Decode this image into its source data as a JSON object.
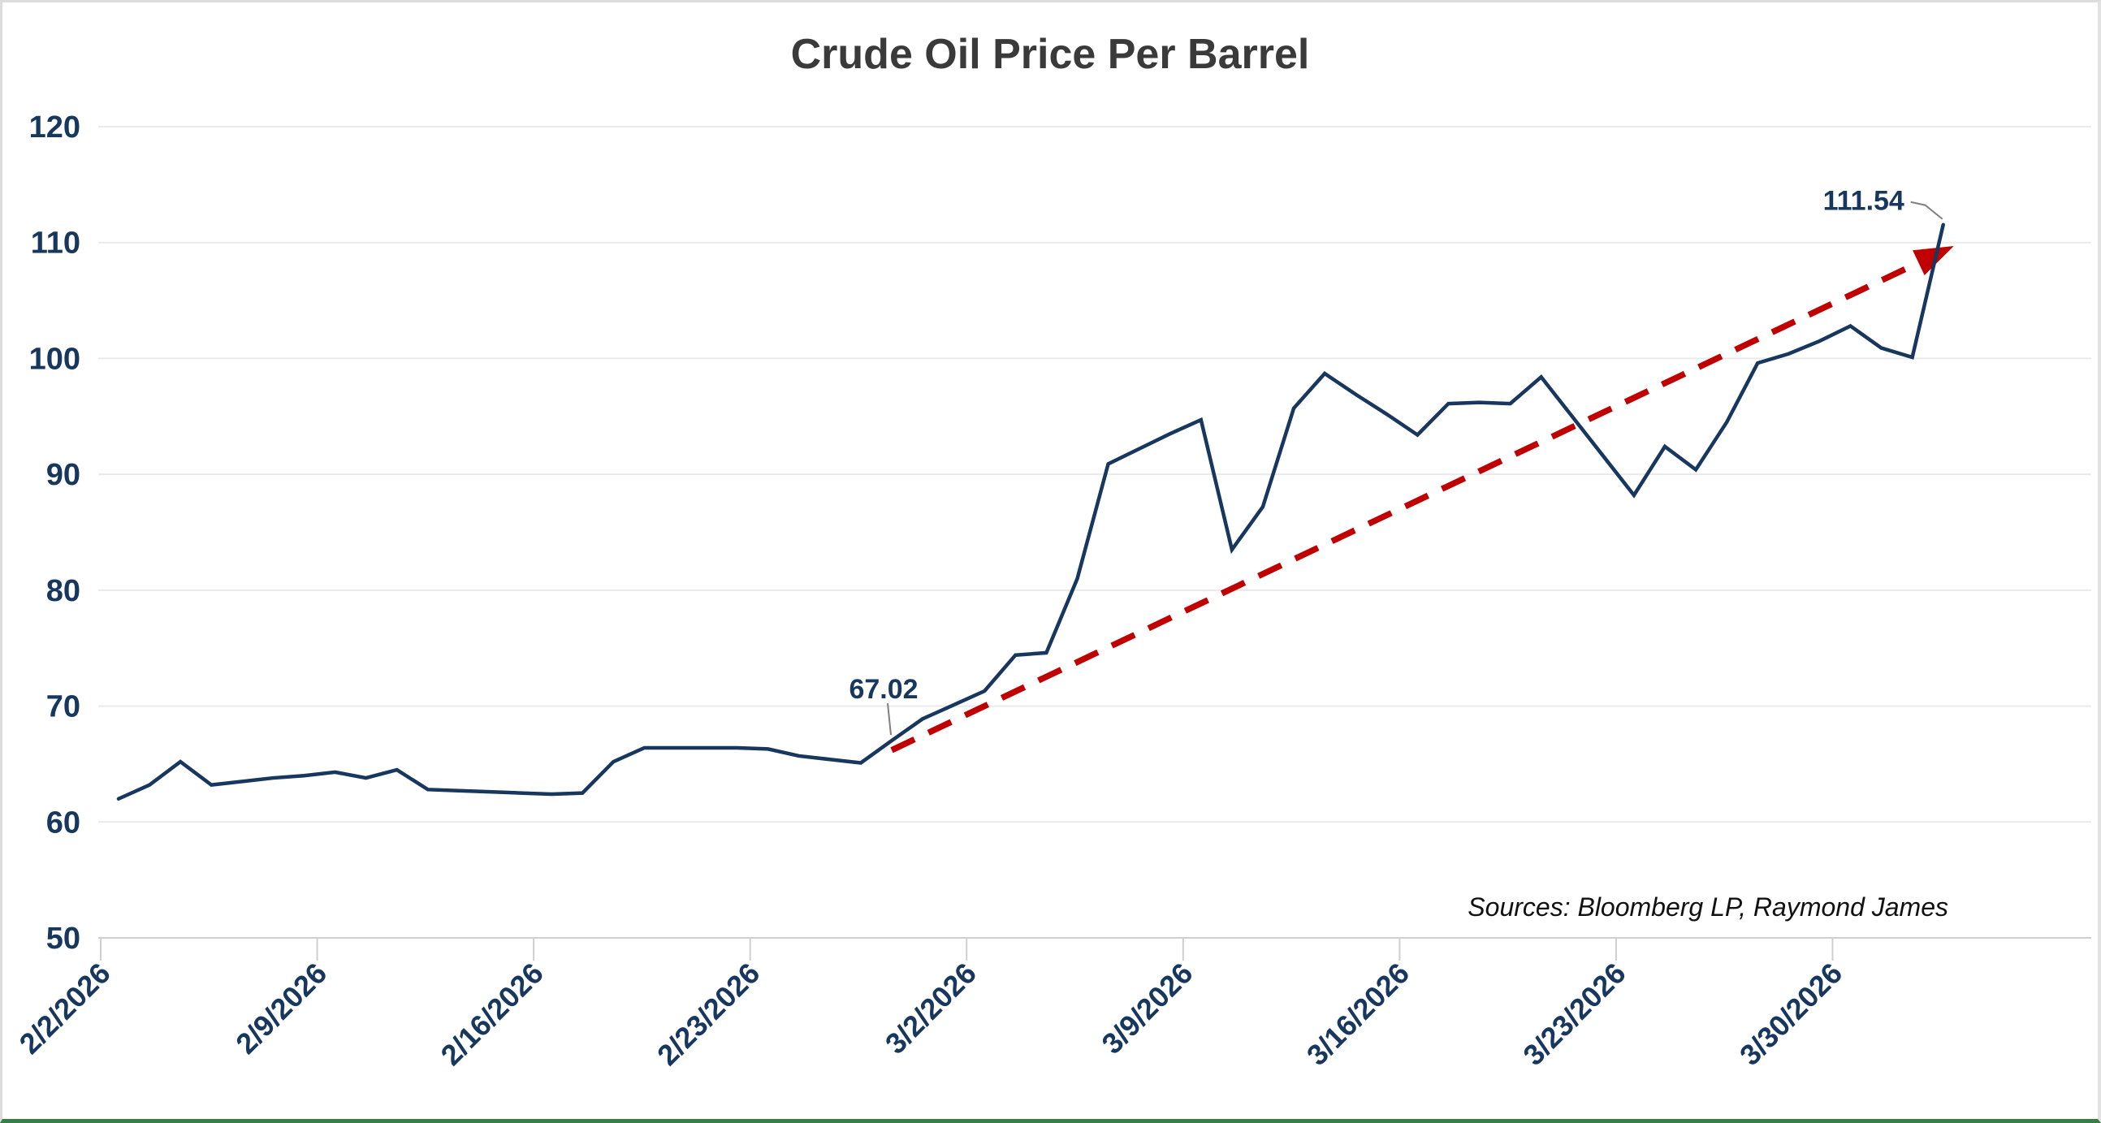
{
  "title": "Crude Oil Price Per Barrel",
  "sources": "Sources: Bloomberg LP, Raymond James",
  "colors": {
    "line": "#17375E",
    "trend": "#C00000",
    "axis_text": "#17375E",
    "title_text": "#3A3A3A",
    "grid": "#EAEAEA",
    "axis_line": "#CFCFCF",
    "leader": "#808080",
    "sources_text": "#111111"
  },
  "chart_data": {
    "type": "line",
    "title": "Crude Oil Price Per Barrel",
    "series_name": "Crude Oil Price Per Barrel",
    "x": [
      "2/2/2026",
      "2/3/2026",
      "2/4/2026",
      "2/5/2026",
      "2/6/2026",
      "2/7/2026",
      "2/8/2026",
      "2/9/2026",
      "2/10/2026",
      "2/11/2026",
      "2/12/2026",
      "2/13/2026",
      "2/14/2026",
      "2/15/2026",
      "2/16/2026",
      "2/17/2026",
      "2/18/2026",
      "2/19/2026",
      "2/20/2026",
      "2/21/2026",
      "2/22/2026",
      "2/23/2026",
      "2/24/2026",
      "2/25/2026",
      "2/26/2026",
      "2/27/2026",
      "2/28/2026",
      "3/1/2026",
      "3/2/2026",
      "3/3/2026",
      "3/4/2026",
      "3/5/2026",
      "3/6/2026",
      "3/7/2026",
      "3/8/2026",
      "3/9/2026",
      "3/10/2026",
      "3/11/2026",
      "3/12/2026",
      "3/13/2026",
      "3/14/2026",
      "3/15/2026",
      "3/16/2026",
      "3/17/2026",
      "3/18/2026",
      "3/19/2026",
      "3/20/2026",
      "3/21/2026",
      "3/22/2026",
      "3/23/2026",
      "3/24/2026",
      "3/25/2026",
      "3/26/2026",
      "3/27/2026",
      "3/28/2026",
      "3/29/2026",
      "3/30/2026",
      "3/31/2026",
      "4/1/2026",
      "4/2/2026"
    ],
    "values": [
      62.0,
      63.2,
      65.2,
      63.2,
      63.5,
      63.8,
      64.0,
      64.3,
      63.8,
      64.5,
      62.8,
      62.7,
      62.6,
      62.5,
      62.4,
      62.5,
      65.2,
      66.4,
      66.4,
      66.4,
      66.4,
      66.3,
      65.7,
      65.4,
      65.1,
      67.02,
      68.9,
      70.1,
      71.3,
      74.4,
      74.6,
      81.0,
      90.9,
      92.2,
      93.5,
      94.7,
      83.5,
      87.2,
      95.7,
      98.7,
      96.9,
      95.2,
      93.4,
      96.1,
      96.2,
      96.1,
      98.4,
      95.0,
      91.6,
      88.2,
      92.4,
      90.4,
      94.5,
      99.6,
      100.4,
      101.5,
      102.8,
      100.9,
      100.1,
      111.54
    ],
    "ylim": [
      50,
      120
    ],
    "y_ticks": [
      120,
      110,
      100,
      90,
      80,
      70,
      60,
      50
    ],
    "x_tick_labels": [
      "2/2/2026",
      "2/9/2026",
      "2/16/2026",
      "2/23/2026",
      "3/2/2026",
      "3/9/2026",
      "3/16/2026",
      "3/23/2026",
      "3/30/2026"
    ],
    "x_tick_indices": [
      0,
      7,
      14,
      21,
      28,
      35,
      42,
      49,
      56
    ],
    "grid": "horizontal",
    "legend": "none",
    "annotations": [
      {
        "label": "67.02",
        "index": 25,
        "placement": "above"
      },
      {
        "label": "111.54",
        "index": 59,
        "placement": "left"
      }
    ],
    "trendline": {
      "style": "dashed-arrow",
      "color": "#C00000",
      "from_index": 25,
      "from_value": 66.2,
      "to_index": 59,
      "to_value": 109.7
    }
  }
}
